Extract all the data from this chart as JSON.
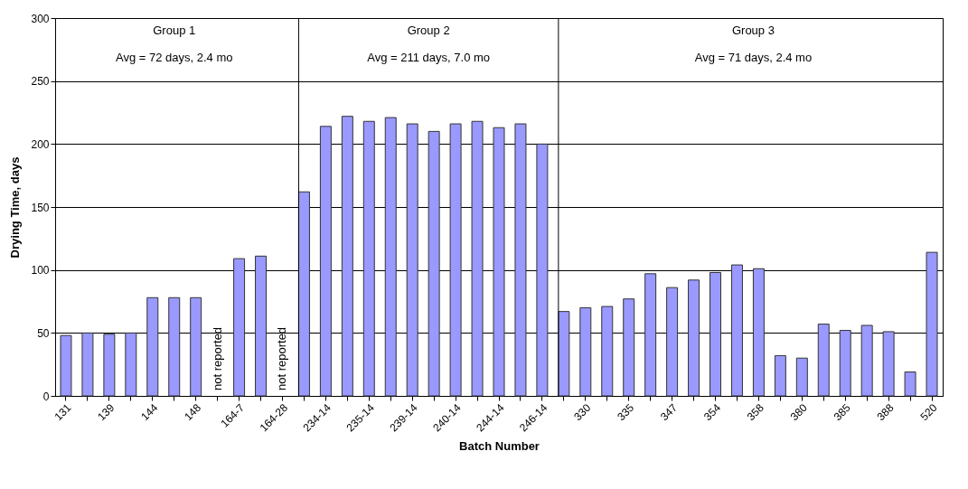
{
  "chart_data": {
    "type": "bar",
    "xlabel": "Batch Number",
    "ylabel": "Drying Time, days",
    "categories": [
      "131",
      null,
      "139",
      null,
      "144",
      null,
      "148",
      null,
      "164-7",
      null,
      "164-28",
      null,
      "234-14",
      null,
      "235-14",
      null,
      "239-14",
      null,
      "240-14",
      null,
      "244-14",
      null,
      "246-14",
      null,
      "330",
      null,
      "335",
      null,
      "347",
      null,
      "354",
      null,
      "358",
      null,
      "380",
      null,
      "385",
      null,
      "388",
      null,
      "520"
    ],
    "series": [
      {
        "color": "#9999ff",
        "values": [
          48,
          50,
          49,
          50,
          78,
          78,
          78,
          null,
          109,
          111,
          null,
          null,
          null,
          null,
          null,
          null,
          null,
          null,
          null,
          null,
          null,
          null,
          null,
          null,
          null,
          null,
          null,
          null,
          null,
          null,
          null,
          null,
          null,
          null,
          null,
          null,
          null,
          null,
          null,
          null,
          null
        ],
        "value_labels": [
          null,
          null,
          null,
          null,
          null,
          null,
          null,
          "not reported",
          null,
          null,
          "not reported",
          null,
          null,
          null,
          null,
          null,
          null,
          null,
          null,
          null,
          null,
          null,
          null,
          null,
          null,
          null,
          null,
          null,
          null,
          null,
          null,
          null,
          null,
          null,
          null,
          null,
          null,
          null,
          null,
          null,
          null
        ]
      },
      {
        "color": "#9999ff",
        "values": [
          null,
          null,
          null,
          null,
          null,
          null,
          null,
          null,
          null,
          null,
          null,
          162,
          214,
          222,
          218,
          221,
          216,
          210,
          216,
          218,
          213,
          216,
          200,
          null,
          null,
          null,
          null,
          null,
          null,
          null,
          null,
          null,
          null,
          null,
          null,
          null,
          null,
          null,
          null,
          null,
          null
        ]
      },
      {
        "color": "#9999ff",
        "values": [
          null,
          null,
          null,
          null,
          null,
          null,
          null,
          null,
          null,
          null,
          null,
          null,
          null,
          null,
          null,
          null,
          null,
          null,
          null,
          null,
          null,
          null,
          null,
          67,
          70,
          71,
          77,
          97,
          86,
          92,
          98,
          104,
          101,
          32,
          30,
          57,
          52,
          56,
          51,
          19,
          114
        ]
      }
    ],
    "annotations": [
      "Group 1",
      "Avg = 72 days, 2.4 mo",
      "Group 2",
      "Avg = 211 days, 7.0 mo",
      "Group 3",
      "Avg = 71 days, 2.4 mo"
    ],
    "ylim": [
      0,
      300
    ],
    "yticks": [
      0,
      50,
      100,
      150,
      200,
      250,
      300
    ],
    "grid": "y"
  }
}
